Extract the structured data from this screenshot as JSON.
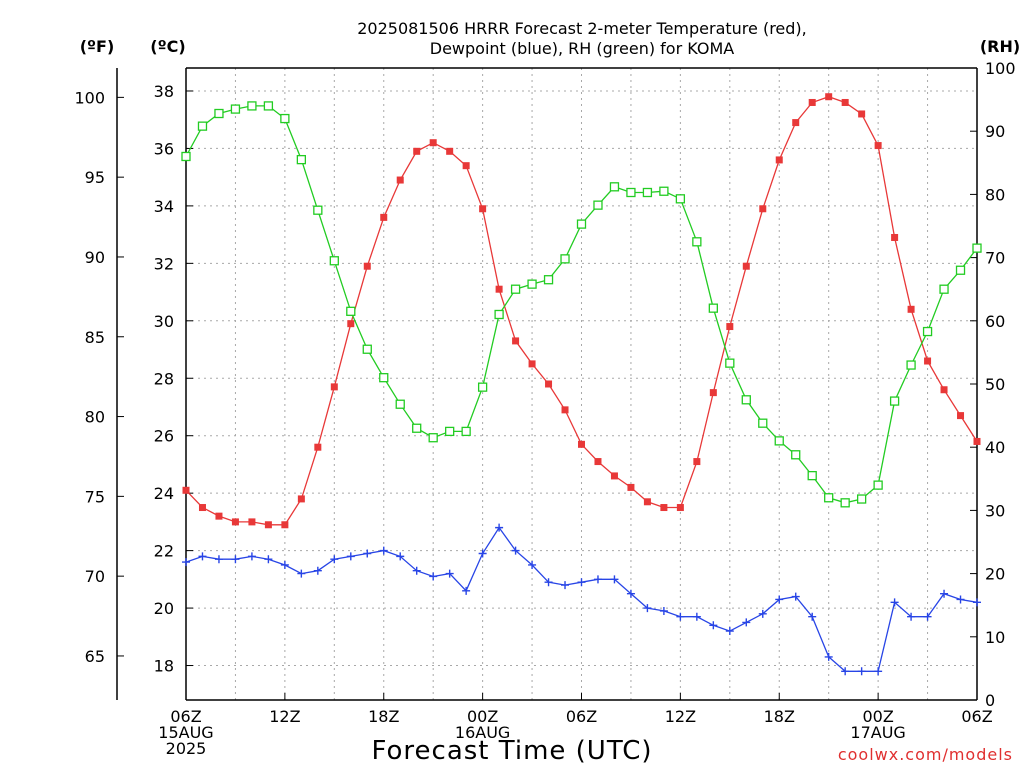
{
  "chart_data": {
    "type": "line",
    "title": [
      "2025081506 HRRR Forecast 2-meter Temperature (red),",
      "Dewpoint (blue), RH (green) for KOMA"
    ],
    "xlabel": "Forecast Time (UTC)",
    "credit": "coolwx.com/models",
    "unit_labels": {
      "f": "(ºF)",
      "c": "(ºC)",
      "rh": "(RH)"
    },
    "x_unit": "forecast hour (step 1 h, starting 06Z 15AUG 2025)",
    "xlim": [
      0,
      48
    ],
    "ylim_c": [
      16.8,
      38.8
    ],
    "ylim_rh": [
      0,
      100
    ],
    "grid": true,
    "x_ticks": [
      {
        "x": 0,
        "lines": [
          "06Z",
          "15AUG",
          "2025"
        ]
      },
      {
        "x": 6,
        "lines": [
          "12Z"
        ]
      },
      {
        "x": 12,
        "lines": [
          "18Z"
        ]
      },
      {
        "x": 18,
        "lines": [
          "00Z",
          "16AUG"
        ]
      },
      {
        "x": 24,
        "lines": [
          "06Z"
        ]
      },
      {
        "x": 30,
        "lines": [
          "12Z"
        ]
      },
      {
        "x": 36,
        "lines": [
          "18Z"
        ]
      },
      {
        "x": 42,
        "lines": [
          "00Z",
          "17AUG"
        ]
      },
      {
        "x": 48,
        "lines": [
          "06Z"
        ]
      }
    ],
    "y_ticks_c": [
      18,
      20,
      22,
      24,
      26,
      28,
      30,
      32,
      34,
      36,
      38
    ],
    "y_ticks_f": [
      65,
      70,
      75,
      80,
      85,
      90,
      95,
      100
    ],
    "y_ticks_rh": [
      0,
      10,
      20,
      30,
      40,
      50,
      60,
      70,
      80,
      90,
      100
    ],
    "series": [
      {
        "name": "Temperature",
        "axis": "c",
        "color": "#e83838",
        "marker": "filled-square",
        "values": [
          24.1,
          23.5,
          23.2,
          23.0,
          23.0,
          22.9,
          22.9,
          23.8,
          25.6,
          27.7,
          29.9,
          31.9,
          33.6,
          34.9,
          35.9,
          36.2,
          35.9,
          35.4,
          33.9,
          31.1,
          29.3,
          28.5,
          27.8,
          26.9,
          25.7,
          25.1,
          24.6,
          24.2,
          23.7,
          23.5,
          23.5,
          25.1,
          27.5,
          29.8,
          31.9,
          33.9,
          35.6,
          36.9,
          37.6,
          37.8,
          37.6,
          37.2,
          36.1,
          32.9,
          30.4,
          28.6,
          27.6,
          26.7,
          25.8
        ]
      },
      {
        "name": "Dewpoint",
        "axis": "c",
        "color": "#2845e6",
        "marker": "plus",
        "values": [
          21.6,
          21.8,
          21.7,
          21.7,
          21.8,
          21.7,
          21.5,
          21.2,
          21.3,
          21.7,
          21.8,
          21.9,
          22.0,
          21.8,
          21.3,
          21.1,
          21.2,
          20.6,
          21.9,
          22.8,
          22.0,
          21.5,
          20.9,
          20.8,
          20.9,
          21.0,
          21.0,
          20.5,
          20.0,
          19.9,
          19.7,
          19.7,
          19.4,
          19.2,
          19.5,
          19.8,
          20.3,
          20.4,
          19.7,
          18.3,
          17.8,
          17.8,
          17.8,
          20.2,
          19.7,
          19.7,
          20.5,
          20.3,
          20.2
        ]
      },
      {
        "name": "RH",
        "axis": "rh",
        "color": "#22cc22",
        "marker": "open-square",
        "values": [
          86,
          90.8,
          92.8,
          93.5,
          94,
          94,
          92,
          85.5,
          77.5,
          69.5,
          61.5,
          55.5,
          51,
          46.8,
          43,
          41.5,
          42.5,
          42.5,
          49.5,
          61,
          65,
          65.8,
          66.5,
          69.8,
          75.3,
          78.3,
          81.2,
          80.3,
          80.3,
          80.5,
          79.3,
          72.5,
          62,
          53.3,
          47.5,
          43.8,
          41,
          38.8,
          35.5,
          32,
          31.2,
          31.8,
          34,
          47.3,
          53,
          58.3,
          65,
          68,
          71.5
        ]
      }
    ]
  }
}
